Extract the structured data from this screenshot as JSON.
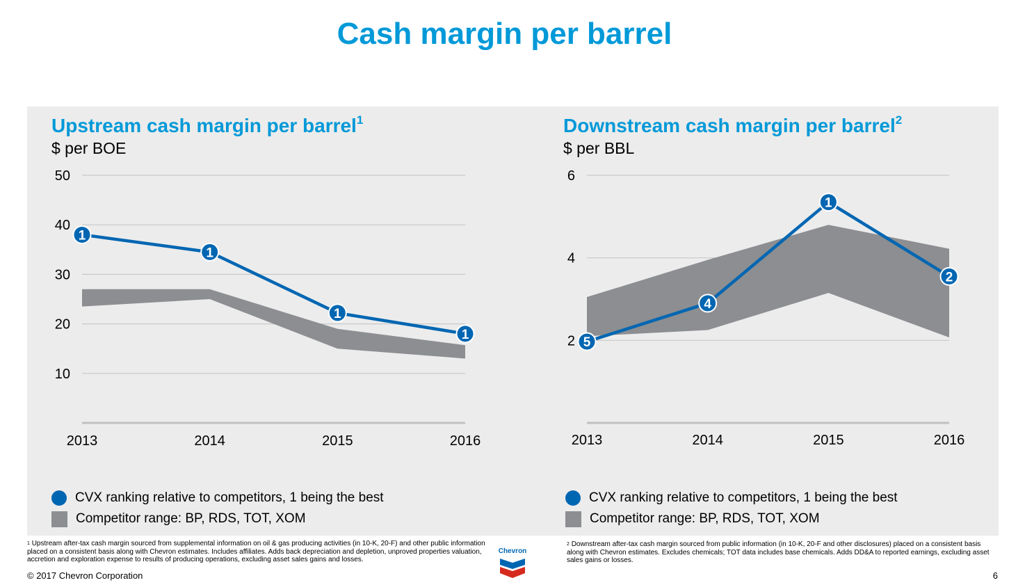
{
  "page_title": "Cash margin per barrel",
  "legend": {
    "dot_label": "CVX ranking relative to competitors, 1 being the best",
    "range_label": "Competitor range: BP, RDS, TOT, XOM"
  },
  "colors": {
    "accent": "#0099d8",
    "series": "#0066b2",
    "range": "#8c8e91",
    "panel": "#ececec",
    "grid": "#c8c8c8"
  },
  "footnotes": {
    "upstream_num": "1",
    "upstream": "Upstream after-tax cash margin sourced from supplemental information on oil & gas producing activities (in 10-K, 20-F) and other public information placed on a consistent basis along with Chevron estimates. Includes affiliates. Adds back depreciation and depletion, unproved properties valuation, accretion and exploration expense to results of producing operations, excluding asset sales gains and losses.",
    "downstream_num": "2",
    "downstream": "Downstream after-tax cash margin sourced from public information (in 10-K, 20-F and other disclosures) placed on a consistent basis along with Chevron estimates. Excludes chemicals; TOT data includes base chemicals. Adds DD&A to reported earnings, excluding asset sales gains or losses."
  },
  "logo_text": "Chevron",
  "copyright": "© 2017 Chevron Corporation",
  "page_number": "6",
  "chart_data": [
    {
      "type": "line",
      "title": "Upstream cash margin per barrel",
      "title_sup": "1",
      "ylabel": "$ per BOE",
      "categories": [
        "2013",
        "2014",
        "2015",
        "2016"
      ],
      "ylim": [
        0,
        50
      ],
      "yticks": [
        10,
        20,
        30,
        40,
        50
      ],
      "grid": true,
      "series": [
        {
          "values": [
            38,
            34.5,
            22.2,
            18
          ],
          "ranks": [
            "1",
            "1",
            "1",
            "1"
          ]
        }
      ],
      "range_band": {
        "low": [
          23.5,
          25,
          15,
          13
        ],
        "high": [
          27,
          27,
          19,
          15.7
        ]
      }
    },
    {
      "type": "line",
      "title": "Downstream cash margin per barrel",
      "title_sup": "2",
      "ylabel": "$ per BBL",
      "categories": [
        "2013",
        "2014",
        "2015",
        "2016"
      ],
      "ylim": [
        0,
        6
      ],
      "yticks": [
        2,
        4,
        6
      ],
      "grid": true,
      "series": [
        {
          "values": [
            1.97,
            2.9,
            5.35,
            3.55
          ],
          "ranks": [
            "5",
            "4",
            "1",
            "2"
          ]
        }
      ],
      "range_band": {
        "low": [
          2.1,
          2.25,
          3.15,
          2.07
        ],
        "high": [
          3.05,
          3.95,
          4.8,
          4.22
        ]
      }
    }
  ]
}
